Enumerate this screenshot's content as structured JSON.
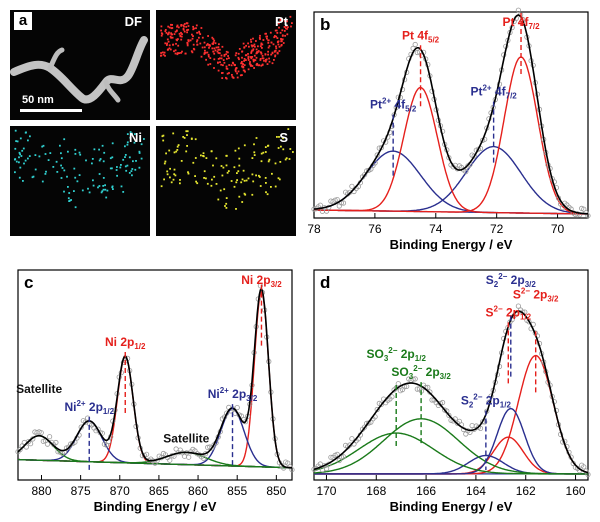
{
  "map": {
    "panel_letter": "a",
    "scale_label": "50 nm",
    "tiles": [
      {
        "label": "DF",
        "color": "#e8e8e8"
      },
      {
        "label": "Pt",
        "color": "#ff3030"
      },
      {
        "label": "Ni",
        "color": "#30d0d0"
      },
      {
        "label": "S",
        "color": "#e8e830"
      }
    ]
  },
  "chart_data": [
    {
      "panel": "b",
      "type": "line",
      "xlabel": "Binding Energy / eV",
      "xlim": [
        78,
        69
      ],
      "xticks": [
        78,
        76,
        74,
        72,
        70
      ],
      "series": [
        {
          "color": "#2a2f8f",
          "peaks": [
            [
              75.4,
              0.3,
              0.9
            ],
            [
              72.1,
              0.33,
              0.9
            ]
          ]
        },
        {
          "color": "#e5201c",
          "peaks": [
            [
              74.5,
              0.62,
              0.55
            ],
            [
              71.2,
              0.78,
              0.55
            ]
          ]
        }
      ],
      "background": [
        [
          78,
          0.04
        ],
        [
          69,
          0.02
        ]
      ],
      "annotations": [
        {
          "text": "Pt 4f",
          "sub": "5/2",
          "x": 74.5,
          "color": "#e5201c"
        },
        {
          "text": "Pt 4f",
          "sub": "7/2",
          "x": 71.2,
          "color": "#e5201c"
        },
        {
          "text": "Pt",
          "sup": "2+",
          "text2": " 4f",
          "sub": "5/2",
          "x": 75.4,
          "color": "#2a2f8f"
        },
        {
          "text": "Pt",
          "sup": "2+",
          "text2": " 4f",
          "sub": "7/2",
          "x": 72.1,
          "color": "#2a2f8f"
        }
      ]
    },
    {
      "panel": "c",
      "type": "line",
      "xlabel": "Binding Energy / eV",
      "xlim": [
        883,
        848
      ],
      "xticks": [
        880,
        875,
        870,
        865,
        860,
        855,
        850
      ],
      "series": [
        {
          "color": "#e5201c",
          "peaks": [
            [
              869.3,
              0.52,
              1.0
            ],
            [
              851.9,
              0.86,
              0.9
            ]
          ]
        },
        {
          "color": "#2a2f8f",
          "peaks": [
            [
              873.9,
              0.2,
              1.6
            ],
            [
              855.6,
              0.28,
              1.5
            ]
          ]
        },
        {
          "color": "#1a7a1a",
          "peaks": [
            [
              880.3,
              0.12,
              1.8
            ],
            [
              861.5,
              0.06,
              2.5
            ]
          ]
        }
      ],
      "background": [
        [
          883,
          0.1
        ],
        [
          848,
          0.06
        ]
      ],
      "annotations": [
        {
          "text": "Ni 2p",
          "sub": "1/2",
          "x": 869.3,
          "color": "#e5201c"
        },
        {
          "text": "Ni 2p",
          "sub": "3/2",
          "x": 851.9,
          "color": "#e5201c"
        },
        {
          "text": "Ni",
          "sup": "2+",
          "text2": " 2p",
          "sub": "1/2",
          "x": 873.9,
          "color": "#2a2f8f"
        },
        {
          "text": "Ni",
          "sup": "2+",
          "text2": " 2p",
          "sub": "3/2",
          "x": 855.6,
          "color": "#2a2f8f"
        },
        {
          "text": "Satellite",
          "x": 880.3,
          "color": "#111111"
        },
        {
          "text": "Satellite",
          "x": 861.5,
          "color": "#111111"
        }
      ]
    },
    {
      "panel": "d",
      "type": "line",
      "xlabel": "Binding Energy / eV",
      "xlim": [
        170.5,
        159.5
      ],
      "xticks": [
        170,
        168,
        166,
        164,
        162,
        160
      ],
      "series": [
        {
          "color": "#e5201c",
          "peaks": [
            [
              161.6,
              0.58,
              0.7
            ],
            [
              162.7,
              0.18,
              0.6
            ]
          ]
        },
        {
          "color": "#2a2f8f",
          "peaks": [
            [
              162.6,
              0.32,
              0.55
            ],
            [
              163.6,
              0.09,
              0.7
            ]
          ]
        },
        {
          "color": "#1a7a1a",
          "peaks": [
            [
              167.2,
              0.2,
              1.5
            ],
            [
              166.2,
              0.27,
              1.5
            ]
          ]
        }
      ],
      "background": [
        [
          170.5,
          0.03
        ],
        [
          159.5,
          0.03
        ]
      ],
      "annotations": [
        {
          "text": "S",
          "sup": "2−",
          "text2": " 2p",
          "sub": "1/2",
          "x": 162.7,
          "color": "#e5201c"
        },
        {
          "text": "S",
          "sup": "2−",
          "text2": " 2p",
          "sub": "3/2",
          "x": 161.6,
          "color": "#e5201c"
        },
        {
          "text": "S",
          "sub0": "2",
          "sup": "2−",
          "text2": " 2p",
          "sub": "3/2",
          "x": 162.6,
          "color": "#2a2f8f"
        },
        {
          "text": "S",
          "sub0": "2",
          "sup": "2−",
          "text2": " 2p",
          "sub": "1/2",
          "x": 163.6,
          "color": "#2a2f8f"
        },
        {
          "text": "SO",
          "sub0": "3",
          "sup": "2−",
          "text2": " 2p",
          "sub": "3/2",
          "x": 166.2,
          "color": "#1a7a1a"
        },
        {
          "text": "SO",
          "sub0": "3",
          "sup": "2−",
          "text2": " 2p",
          "sub": "1/2",
          "x": 167.2,
          "color": "#1a7a1a"
        }
      ]
    }
  ]
}
